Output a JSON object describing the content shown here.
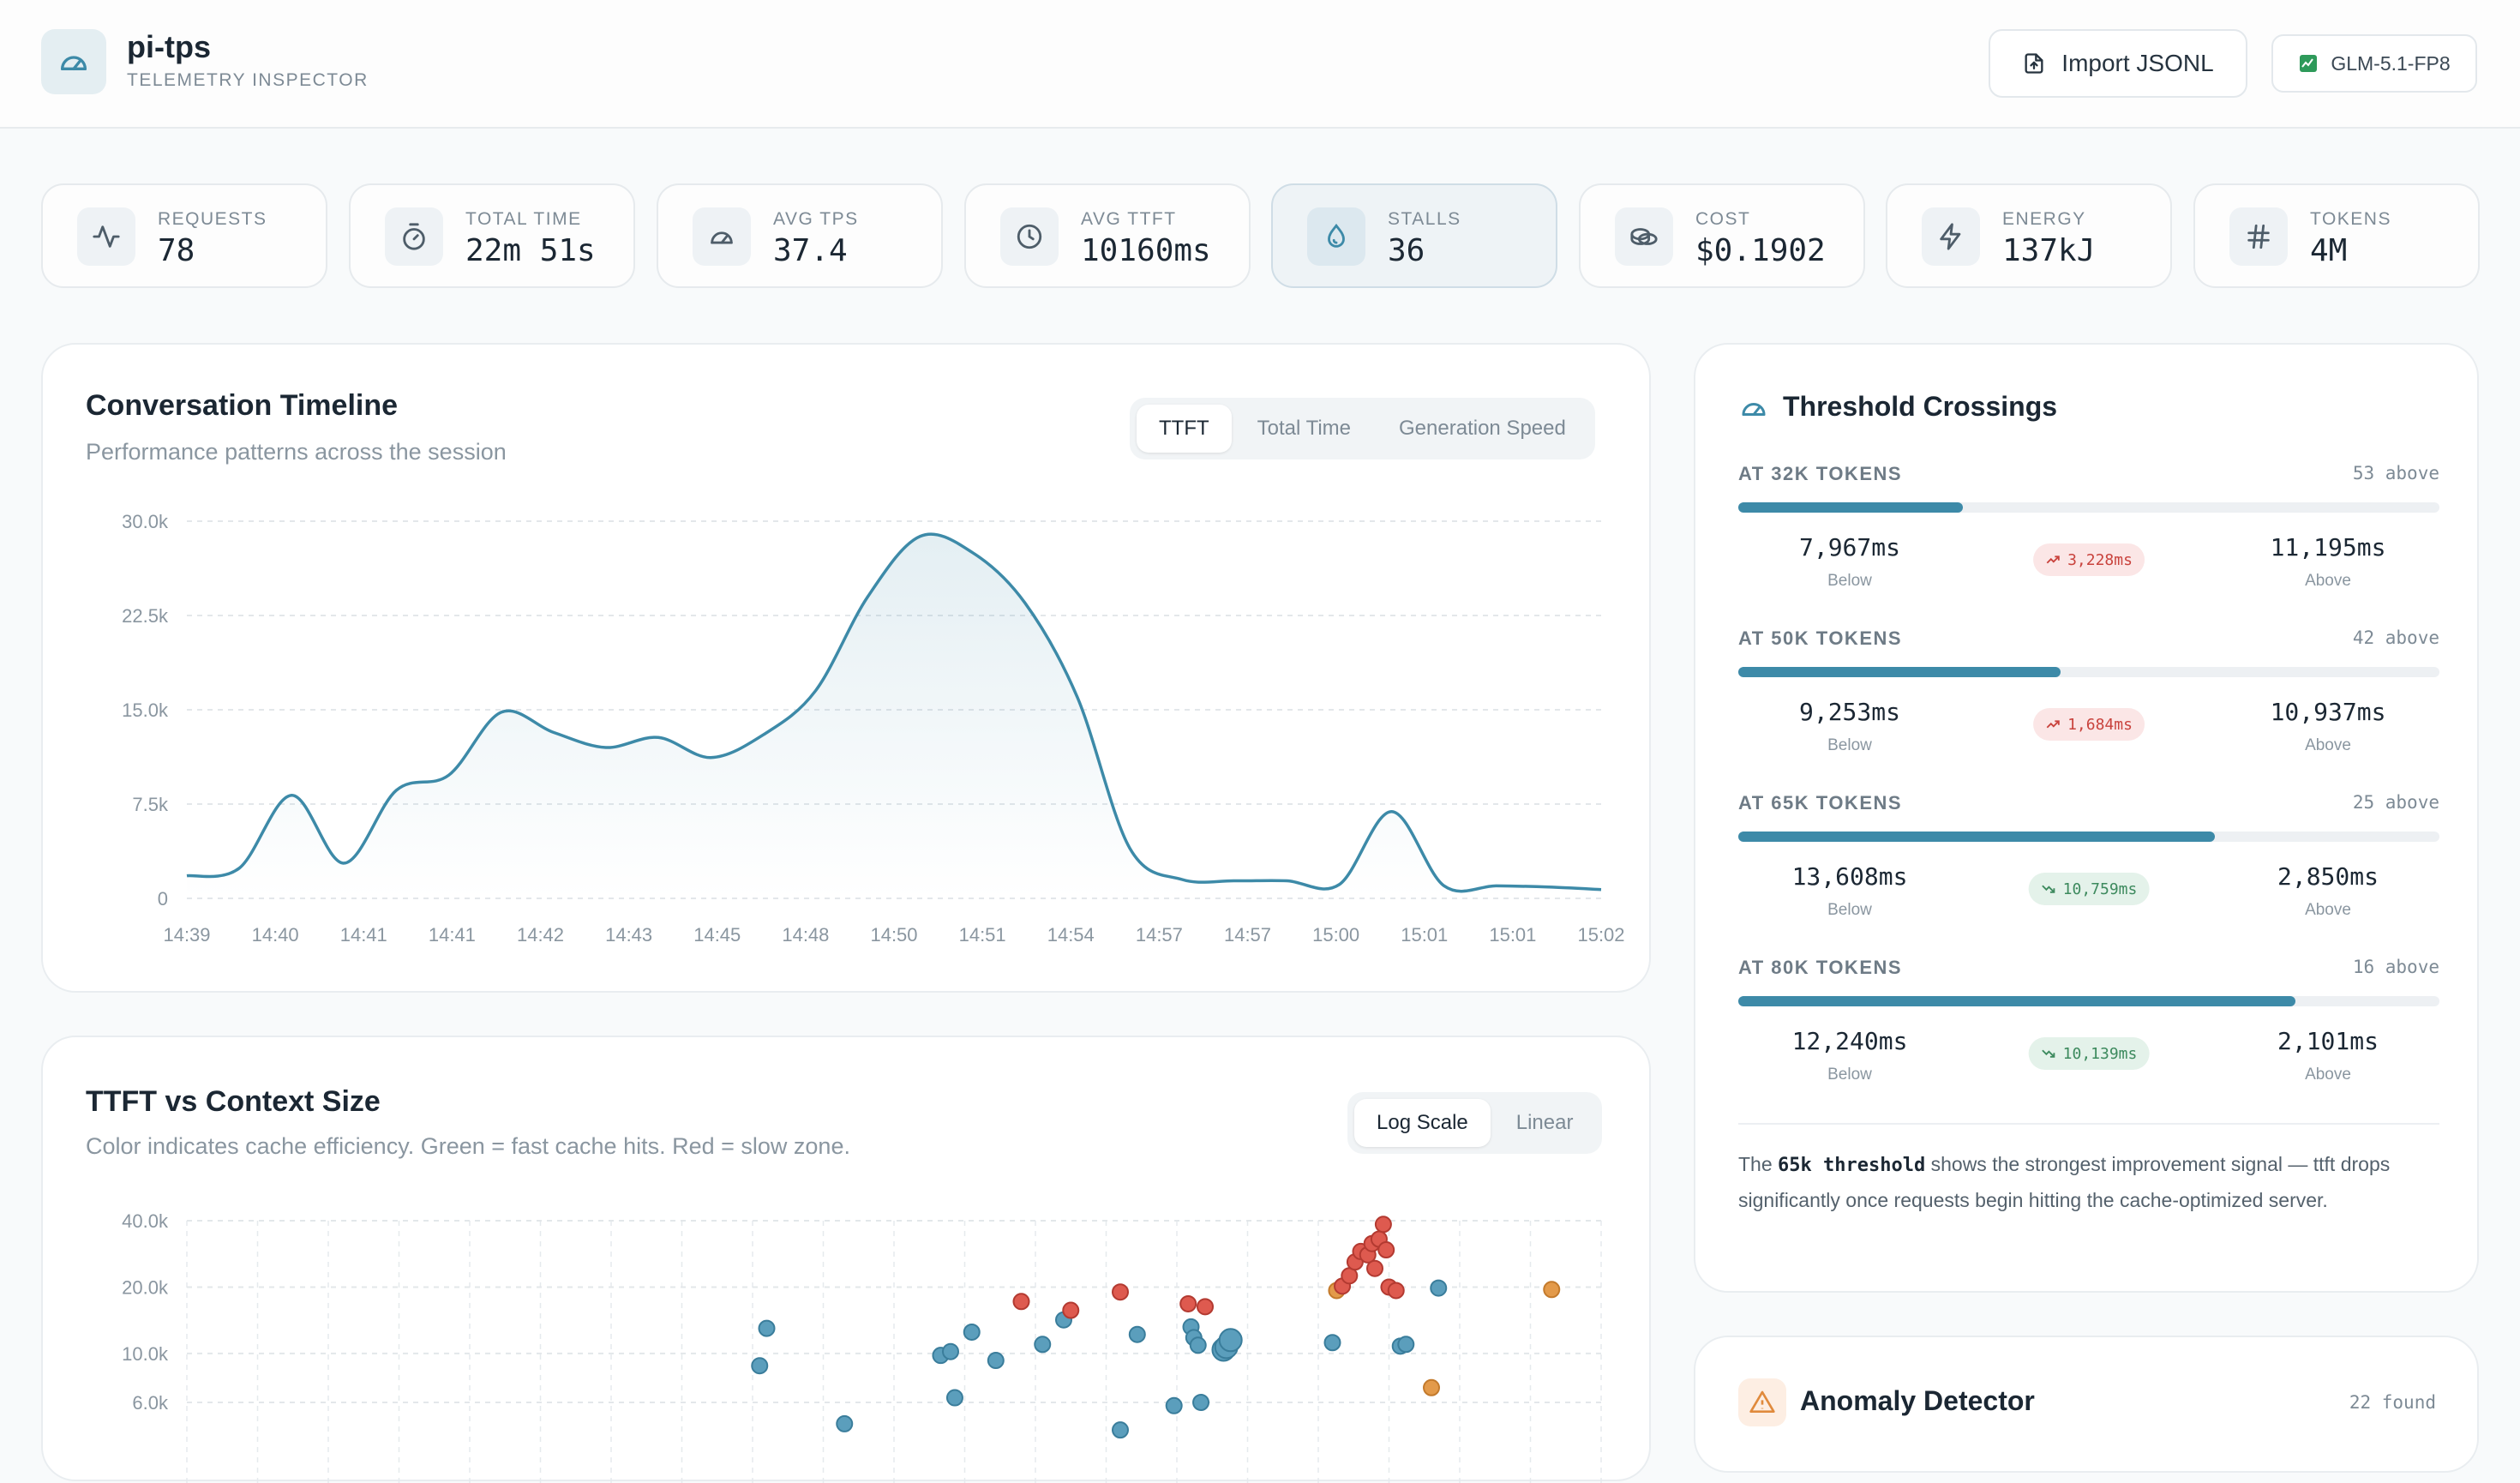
{
  "app": {
    "title": "pi-tps",
    "subtitle": "TELEMETRY INSPECTOR",
    "import_label": "Import JSONL",
    "model": "GLM-5.1-FP8"
  },
  "stats": [
    {
      "label": "REQUESTS",
      "value": "78",
      "icon": "activity-icon"
    },
    {
      "label": "TOTAL TIME",
      "value": "22m 51s",
      "icon": "stopwatch-icon"
    },
    {
      "label": "AVG TPS",
      "value": "37.4",
      "icon": "gauge-icon"
    },
    {
      "label": "AVG TTFT",
      "value": "10160ms",
      "icon": "clock-icon"
    },
    {
      "label": "STALLS",
      "value": "36",
      "icon": "droplet-icon",
      "active": true
    },
    {
      "label": "COST",
      "value": "$0.1902",
      "icon": "coins-icon"
    },
    {
      "label": "ENERGY",
      "value": "137kJ",
      "icon": "bolt-icon"
    },
    {
      "label": "TOKENS",
      "value": "4M",
      "icon": "hash-icon"
    }
  ],
  "timeline": {
    "title": "Conversation Timeline",
    "subtitle": "Performance patterns across the session",
    "tabs": [
      "TTFT",
      "Total Time",
      "Generation Speed"
    ],
    "active_tab": "TTFT"
  },
  "scatter": {
    "title": "TTFT vs Context Size",
    "subtitle": "Color indicates cache efficiency. Green = fast cache hits. Red = slow zone.",
    "tabs": [
      "Log Scale",
      "Linear"
    ],
    "active_tab": "Log Scale"
  },
  "threshold": {
    "title": "Threshold Crossings",
    "rows": [
      {
        "label": "AT 32K TOKENS",
        "count": "53  above",
        "fill": 0.32,
        "below": "7,967ms",
        "above": "11,195ms",
        "delta": "3,228ms",
        "dir": "up"
      },
      {
        "label": "AT 50K TOKENS",
        "count": "42  above",
        "fill": 0.46,
        "below": "9,253ms",
        "above": "10,937ms",
        "delta": "1,684ms",
        "dir": "up"
      },
      {
        "label": "AT 65K TOKENS",
        "count": "25  above",
        "fill": 0.68,
        "below": "13,608ms",
        "above": "2,850ms",
        "delta": "10,759ms",
        "dir": "down"
      },
      {
        "label": "AT 80K TOKENS",
        "count": "16  above",
        "fill": 0.795,
        "below": "12,240ms",
        "above": "2,101ms",
        "delta": "10,139ms",
        "dir": "down"
      }
    ],
    "below_caption": "Below",
    "above_caption": "Above",
    "note_pre": "The ",
    "note_code": "65k threshold",
    "note_post": " shows the strongest improvement signal — ttft drops significantly once requests begin hitting the cache-optimized server."
  },
  "anomaly": {
    "title": "Anomaly Detector",
    "count": "22  found"
  },
  "chart_data": [
    {
      "type": "line",
      "title": "Conversation Timeline",
      "series": [
        {
          "values": [
            1800,
            2400,
            8200,
            2800,
            8600,
            9800,
            14800,
            13200,
            12000,
            12800,
            11200,
            13000,
            16500,
            24000,
            28800,
            27500,
            23500,
            16000,
            4000,
            1500,
            1400,
            1400,
            1100,
            6900,
            1000,
            1000,
            900,
            700
          ]
        }
      ],
      "x_tick_labels": [
        "14:39",
        "14:40",
        "14:41",
        "14:41",
        "14:42",
        "14:43",
        "14:45",
        "14:48",
        "14:50",
        "14:51",
        "14:54",
        "14:57",
        "14:57",
        "15:00",
        "15:01",
        "15:01",
        "15:02"
      ],
      "y_tick_labels": [
        "0",
        "7.5k",
        "15.0k",
        "22.5k",
        "30.0k"
      ],
      "ylim": [
        0,
        30000
      ]
    },
    {
      "type": "scatter",
      "title": "TTFT vs Context Size",
      "y_scale": "log",
      "y_tick_labels": [
        "6.0k",
        "10.0k",
        "20.0k",
        "40.0k"
      ],
      "points": [
        {
          "x": 0.405,
          "y": 8800,
          "c": "blue"
        },
        {
          "x": 0.41,
          "y": 13000,
          "c": "blue"
        },
        {
          "x": 0.465,
          "y": 4800,
          "c": "blue"
        },
        {
          "x": 0.533,
          "y": 9800,
          "c": "blue"
        },
        {
          "x": 0.54,
          "y": 10200,
          "c": "blue"
        },
        {
          "x": 0.543,
          "y": 6300,
          "c": "blue"
        },
        {
          "x": 0.555,
          "y": 12500,
          "c": "blue"
        },
        {
          "x": 0.572,
          "y": 9300,
          "c": "blue"
        },
        {
          "x": 0.59,
          "y": 17200,
          "c": "red"
        },
        {
          "x": 0.605,
          "y": 11000,
          "c": "blue"
        },
        {
          "x": 0.62,
          "y": 14200,
          "c": "blue"
        },
        {
          "x": 0.625,
          "y": 15700,
          "c": "red"
        },
        {
          "x": 0.66,
          "y": 19000,
          "c": "red"
        },
        {
          "x": 0.66,
          "y": 4500,
          "c": "blue"
        },
        {
          "x": 0.672,
          "y": 12200,
          "c": "blue"
        },
        {
          "x": 0.698,
          "y": 5800,
          "c": "blue"
        },
        {
          "x": 0.708,
          "y": 16800,
          "c": "red"
        },
        {
          "x": 0.71,
          "y": 13200,
          "c": "blue"
        },
        {
          "x": 0.712,
          "y": 11800,
          "c": "blue"
        },
        {
          "x": 0.715,
          "y": 10900,
          "c": "blue"
        },
        {
          "x": 0.717,
          "y": 6000,
          "c": "blue"
        },
        {
          "x": 0.72,
          "y": 16300,
          "c": "red"
        },
        {
          "x": 0.733,
          "y": 10400,
          "c": "blue"
        },
        {
          "x": 0.735,
          "y": 10700,
          "c": "blue"
        },
        {
          "x": 0.738,
          "y": 11500,
          "c": "blue"
        },
        {
          "x": 0.81,
          "y": 11200,
          "c": "blue"
        },
        {
          "x": 0.813,
          "y": 19300,
          "c": "orange"
        },
        {
          "x": 0.817,
          "y": 20200,
          "c": "red"
        },
        {
          "x": 0.822,
          "y": 22500,
          "c": "red"
        },
        {
          "x": 0.826,
          "y": 26000,
          "c": "red"
        },
        {
          "x": 0.83,
          "y": 29000,
          "c": "red"
        },
        {
          "x": 0.835,
          "y": 28000,
          "c": "red"
        },
        {
          "x": 0.838,
          "y": 31500,
          "c": "red"
        },
        {
          "x": 0.84,
          "y": 24300,
          "c": "red"
        },
        {
          "x": 0.843,
          "y": 33000,
          "c": "red"
        },
        {
          "x": 0.846,
          "y": 38500,
          "c": "red"
        },
        {
          "x": 0.848,
          "y": 29500,
          "c": "red"
        },
        {
          "x": 0.85,
          "y": 20000,
          "c": "red"
        },
        {
          "x": 0.855,
          "y": 19300,
          "c": "red"
        },
        {
          "x": 0.858,
          "y": 10800,
          "c": "blue"
        },
        {
          "x": 0.862,
          "y": 11000,
          "c": "blue"
        },
        {
          "x": 0.88,
          "y": 7000,
          "c": "orange"
        },
        {
          "x": 0.885,
          "y": 19800,
          "c": "blue"
        },
        {
          "x": 0.965,
          "y": 19500,
          "c": "orange"
        }
      ]
    }
  ]
}
